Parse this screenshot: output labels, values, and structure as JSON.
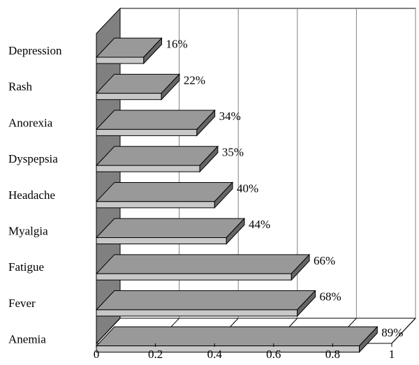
{
  "chart_data": {
    "type": "bar",
    "orientation": "horizontal",
    "three_d": true,
    "categories": [
      "Depression",
      "Rash",
      "Anorexia",
      "Dyspepsia",
      "Headache",
      "Myalgia",
      "Fatigue",
      "Fever",
      "Anemia"
    ],
    "values": [
      0.16,
      0.22,
      0.34,
      0.35,
      0.4,
      0.44,
      0.66,
      0.68,
      0.89
    ],
    "data_labels": [
      "16%",
      "22%",
      "34%",
      "35%",
      "40%",
      "44%",
      "66%",
      "68%",
      "89%"
    ],
    "xlim": [
      0,
      1
    ],
    "x_ticks": [
      "0",
      "0.2",
      "0.4",
      "0.6",
      "0.8",
      "1"
    ],
    "grid": true,
    "legend": "none",
    "colors": {
      "bar_top": "#999999",
      "bar_front": "#c8c8c8",
      "bar_side": "#666666",
      "wall": "#808080",
      "grid": "#808080"
    }
  }
}
